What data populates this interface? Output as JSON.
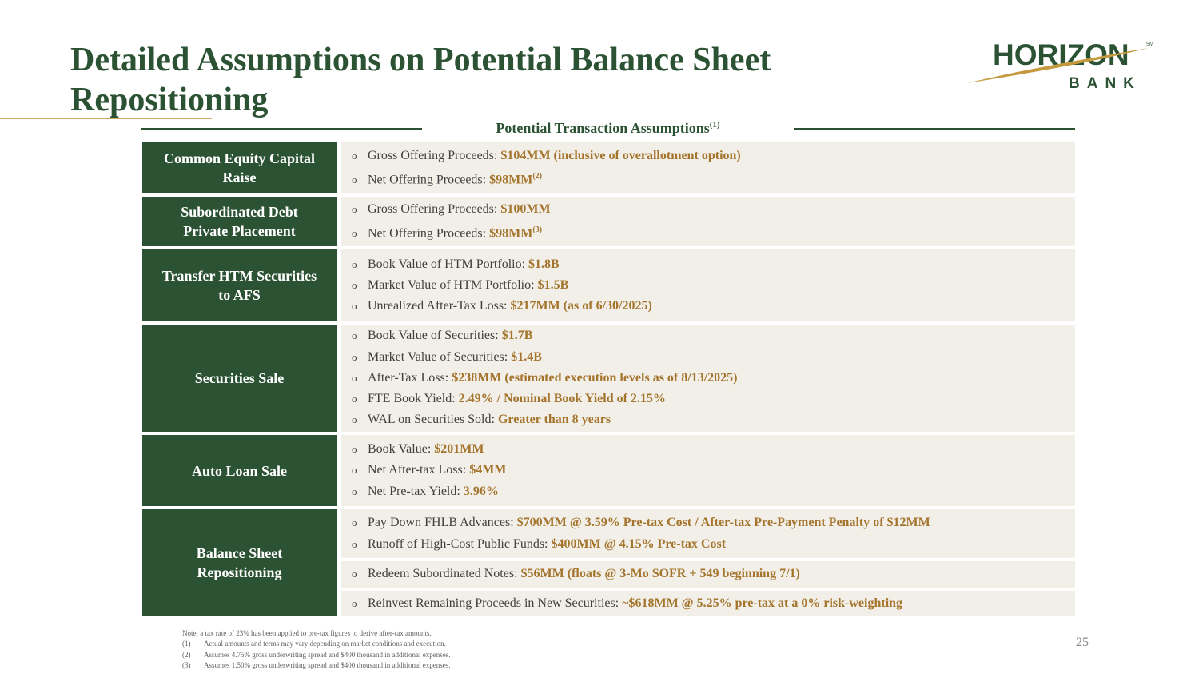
{
  "title": "Detailed Assumptions on Potential Balance Sheet Repositioning",
  "logo": {
    "word1": "HORIZON",
    "word2": "BANK",
    "mark": "SM"
  },
  "section": {
    "label": "Potential Transaction Assumptions",
    "sup": "(1)"
  },
  "rows": [
    {
      "category": "Common Equity Capital Raise",
      "items": [
        {
          "label": "Gross Offering Proceeds: ",
          "value": "$104MM (inclusive of overallotment option)",
          "sup": ""
        },
        {
          "label": "Net Offering Proceeds: ",
          "value": "$98MM",
          "sup": "(2)"
        }
      ]
    },
    {
      "category": "Subordinated Debt Private Placement",
      "items": [
        {
          "label": "Gross Offering Proceeds: ",
          "value": "$100MM",
          "sup": ""
        },
        {
          "label": "Net Offering Proceeds: ",
          "value": "$98MM",
          "sup": "(3)"
        }
      ]
    },
    {
      "category": "Transfer HTM Securities to AFS",
      "items": [
        {
          "label": "Book Value of HTM Portfolio: ",
          "value": "$1.8B"
        },
        {
          "label": "Market Value of HTM Portfolio: ",
          "value": "$1.5B"
        },
        {
          "label": "Unrealized After-Tax Loss: ",
          "value": "$217MM (as of 6/30/2025)"
        }
      ]
    },
    {
      "category": "Securities Sale",
      "items": [
        {
          "label": "Book Value of Securities: ",
          "value": "$1.7B"
        },
        {
          "label": "Market Value of Securities: ",
          "value": "$1.4B"
        },
        {
          "label": "After-Tax Loss: ",
          "value": "$238MM (estimated execution levels as of 8/13/2025)"
        },
        {
          "label": "FTE Book Yield: ",
          "value": "2.49% / Nominal Book Yield of 2.15%"
        },
        {
          "label": "WAL on Securities Sold: ",
          "value": "Greater than 8 years"
        }
      ]
    },
    {
      "category": "Auto Loan Sale",
      "items": [
        {
          "label": "Book Value: ",
          "value": "$201MM"
        },
        {
          "label": "Net After-tax Loss: ",
          "value": "$4MM"
        },
        {
          "label": "Net Pre-tax Yield: ",
          "value": "3.96%"
        }
      ]
    },
    {
      "category": "Balance Sheet Repositioning",
      "groups": [
        [
          {
            "label": "Pay Down FHLB Advances: ",
            "value": "$700MM @ 3.59% Pre-tax Cost / After-tax Pre-Payment Penalty of $12MM"
          },
          {
            "label": "Runoff of High-Cost Public Funds: ",
            "value": "$400MM @ 4.15% Pre-tax Cost"
          }
        ],
        [
          {
            "label": "Redeem Subordinated Notes: ",
            "value": "$56MM (floats @ 3-Mo SOFR + 549 beginning 7/1)"
          }
        ],
        [
          {
            "label": "Reinvest Remaining Proceeds in New Securities: ",
            "value": "~$618MM @ 5.25% pre-tax at a 0% risk-weighting"
          }
        ]
      ]
    }
  ],
  "notes": {
    "intro": "Note: a tax rate of 23% has been applied to pre-tax figures to derive after-tax amounts.",
    "items": [
      {
        "key": "(1)",
        "text": "Actual amounts and terms may vary depending on market conditions and execution."
      },
      {
        "key": "(2)",
        "text": "Assumes 4.75% gross underwriting spread and $400 thousand in additional expenses."
      },
      {
        "key": "(3)",
        "text": "Assumes 1.50% gross underwriting spread and $400 thousand in additional expenses."
      }
    ]
  },
  "page_number": "25",
  "colors": {
    "green": "#2c5234",
    "gold": "#a4742c",
    "panel": "#f2efe8"
  }
}
